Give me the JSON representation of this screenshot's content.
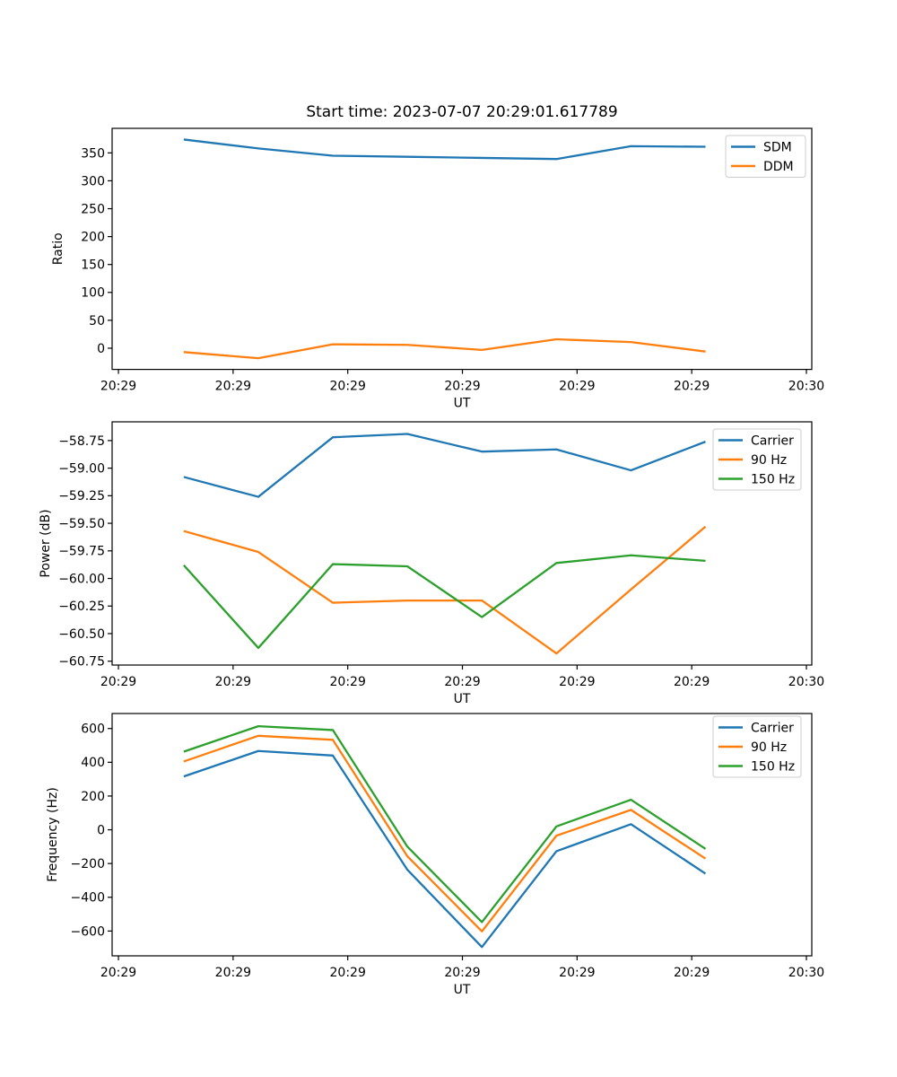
{
  "figure": {
    "title": "Start time: 2023-07-07 20:29:01.617789",
    "background": "#ffffff"
  },
  "chart_data": [
    {
      "type": "line",
      "ylabel": "Ratio",
      "xlabel": "UT",
      "x_seconds": [
        5.7,
        12.2,
        18.7,
        25.2,
        31.7,
        38.2,
        44.7,
        51.2
      ],
      "xlim": [
        -0.55,
        60.47
      ],
      "ylim": [
        -38,
        394
      ],
      "xtick_values": [
        0,
        10,
        20,
        30,
        40,
        50,
        60
      ],
      "xtick_labels": [
        "20:29",
        "20:29",
        "20:29",
        "20:29",
        "20:29",
        "20:29",
        "20:30"
      ],
      "ytick_values": [
        0,
        50,
        100,
        150,
        200,
        250,
        300,
        350
      ],
      "ytick_labels": [
        "0",
        "50",
        "100",
        "150",
        "200",
        "250",
        "300",
        "350"
      ],
      "grid": false,
      "legend_position": "upper-right",
      "series": [
        {
          "name": "SDM",
          "color": "#1f77b4",
          "values": [
            374,
            358,
            345,
            343,
            341,
            339,
            362,
            361
          ]
        },
        {
          "name": "DDM",
          "color": "#ff7f0e",
          "values": [
            -7,
            -18,
            7,
            6,
            -3,
            16,
            11,
            -6
          ]
        }
      ]
    },
    {
      "type": "line",
      "ylabel": "Power (dB)",
      "xlabel": "UT",
      "x_seconds": [
        5.7,
        12.2,
        18.7,
        25.2,
        31.7,
        38.2,
        44.7,
        51.2
      ],
      "xlim": [
        -0.55,
        60.47
      ],
      "ylim": [
        -60.785,
        -58.58
      ],
      "xtick_values": [
        0,
        10,
        20,
        30,
        40,
        50,
        60
      ],
      "xtick_labels": [
        "20:29",
        "20:29",
        "20:29",
        "20:29",
        "20:29",
        "20:29",
        "20:30"
      ],
      "ytick_values": [
        -60.75,
        -60.5,
        -60.25,
        -60.0,
        -59.75,
        -59.5,
        -59.25,
        -59.0,
        -58.75
      ],
      "ytick_labels": [
        "−60.75",
        "−60.50",
        "−60.25",
        "−60.00",
        "−59.75",
        "−59.50",
        "−59.25",
        "−59.00",
        "−58.75"
      ],
      "grid": false,
      "legend_position": "upper-right",
      "series": [
        {
          "name": "Carrier",
          "color": "#1f77b4",
          "values": [
            -59.08,
            -59.26,
            -58.72,
            -58.69,
            -58.85,
            -58.83,
            -59.02,
            -58.76
          ]
        },
        {
          "name": "90 Hz",
          "color": "#ff7f0e",
          "values": [
            -59.57,
            -59.76,
            -60.22,
            -60.2,
            -60.2,
            -60.68,
            -60.1,
            -59.53
          ]
        },
        {
          "name": "150 Hz",
          "color": "#2ca02c",
          "values": [
            -59.88,
            -60.63,
            -59.87,
            -59.89,
            -60.35,
            -59.86,
            -59.79,
            -59.84
          ]
        }
      ]
    },
    {
      "type": "line",
      "ylabel": "Frequency (Hz)",
      "xlabel": "UT",
      "x_seconds": [
        5.7,
        12.2,
        18.7,
        25.2,
        31.7,
        38.2,
        44.7,
        51.2
      ],
      "xlim": [
        -0.55,
        60.47
      ],
      "ylim": [
        -747,
        689
      ],
      "xtick_values": [
        0,
        10,
        20,
        30,
        40,
        50,
        60
      ],
      "xtick_labels": [
        "20:29",
        "20:29",
        "20:29",
        "20:29",
        "20:29",
        "20:29",
        "20:30"
      ],
      "ytick_values": [
        -600,
        -400,
        -200,
        0,
        200,
        400,
        600
      ],
      "ytick_labels": [
        "−600",
        "−400",
        "−200",
        "0",
        "200",
        "400",
        "600"
      ],
      "grid": false,
      "legend_position": "upper-right",
      "series": [
        {
          "name": "Carrier",
          "color": "#1f77b4",
          "values": [
            316,
            467,
            440,
            -237,
            -695,
            -127,
            33,
            -260
          ]
        },
        {
          "name": "90 Hz",
          "color": "#ff7f0e",
          "values": [
            405,
            557,
            533,
            -157,
            -602,
            -35,
            118,
            -171
          ]
        },
        {
          "name": "150 Hz",
          "color": "#2ca02c",
          "values": [
            463,
            614,
            591,
            -100,
            -547,
            20,
            178,
            -113
          ]
        }
      ]
    }
  ]
}
